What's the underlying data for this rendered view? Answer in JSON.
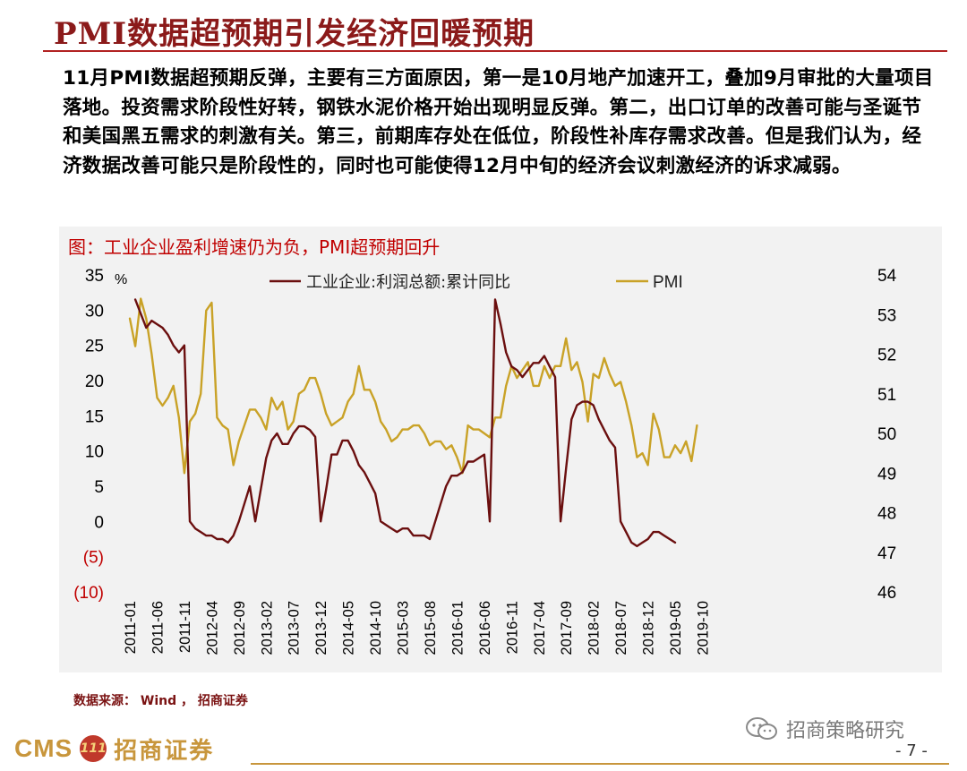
{
  "slide": {
    "title": "PMI数据超预期引发经济回暖预期",
    "paragraph": "11月PMI数据超预期反弹，主要有三方面原因，第一是10月地产加速开工，叠加9月审批的大量项目落地。投资需求阶段性好转，钢铁水泥价格开始出现明显反弹。第二，出口订单的改善可能与圣诞节和美国黑五需求的刺激有关。第三，前期库存处在低位，阶段性补库存需求改善。但是我们认为，经济数据改善可能只是阶段性的，同时也可能使得12月中旬的经济会议刺激经济的诉求减弱。",
    "chart_title": "图：工业企业盈利增速仍为负，PMI超预期回升",
    "source": "数据来源： Wind ， 招商证券",
    "logo_text": "CMS",
    "logo_mark": "111",
    "logo_cn": "招商证券",
    "watermark": "招商策略研究",
    "page_number": "- 7 -"
  },
  "colors": {
    "accent": "#8b1a1a",
    "profit_line": "#6b0f0f",
    "pmi_line": "#c9a227",
    "negative_label": "#c00000",
    "panel_bg": "#f2f2f2",
    "logo_gold": "#c8963c"
  },
  "chart_data": {
    "type": "line",
    "title": "图：工业企业盈利增速仍为负，PMI超预期回升",
    "left_unit": "%",
    "x_tick_labels": [
      "2011-01",
      "2011-06",
      "2011-11",
      "2012-04",
      "2012-09",
      "2013-02",
      "2013-07",
      "2013-12",
      "2014-05",
      "2014-10",
      "2015-03",
      "2015-08",
      "2016-01",
      "2016-06",
      "2016-11",
      "2017-04",
      "2017-09",
      "2018-02",
      "2018-07",
      "2018-12",
      "2019-05",
      "2019-10"
    ],
    "y_left": {
      "min": -10,
      "max": 35,
      "ticks": [
        "35",
        "30",
        "25",
        "20",
        "15",
        "10",
        "5",
        "0",
        "(5)",
        "(10)"
      ]
    },
    "y_right": {
      "min": 46,
      "max": 54,
      "ticks": [
        "54",
        "53",
        "52",
        "51",
        "50",
        "49",
        "48",
        "47",
        "46"
      ]
    },
    "legend": [
      "工业企业:利润总额:累计同比",
      "PMI"
    ],
    "legend_position": "top",
    "series": [
      {
        "name": "工业企业:利润总额:累计同比",
        "axis": "left",
        "x": [
          1,
          2,
          3,
          4,
          5,
          6,
          7,
          8,
          9,
          10,
          11,
          12,
          13,
          14,
          15,
          16,
          17,
          18,
          19,
          20,
          21,
          22,
          23,
          24,
          25,
          26,
          27,
          28,
          29,
          30,
          31,
          32,
          33,
          34,
          35,
          36,
          37,
          38,
          39,
          40,
          41,
          42,
          43,
          44,
          45,
          46,
          47,
          48,
          49,
          50,
          51,
          52,
          53,
          54,
          55,
          56,
          57,
          58,
          59,
          60,
          61,
          62,
          63,
          64,
          65,
          66,
          67,
          68,
          69,
          70,
          71,
          72,
          73,
          74,
          75,
          76,
          77,
          78,
          79,
          80,
          81,
          82,
          83,
          84,
          85,
          86,
          87,
          88,
          89,
          90,
          91,
          92,
          93,
          94,
          95,
          96,
          97,
          98,
          99,
          100,
          101,
          102,
          103,
          104,
          105,
          106,
          107,
          108,
          109,
          110,
          111,
          112,
          113,
          114,
          115,
          116,
          117,
          118,
          119,
          120,
          121,
          122,
          123,
          124,
          125,
          126,
          127,
          128,
          129,
          130,
          131,
          132,
          133,
          134
        ],
        "values": [
          null,
          31.5,
          29.5,
          27.5,
          28.5,
          28.0,
          27.5,
          26.5,
          25.0,
          24.0,
          25.0,
          0.0,
          -1.0,
          -1.5,
          -2.0,
          -2.0,
          -2.5,
          -2.5,
          -3.0,
          -2.0,
          0.0,
          2.5,
          5.0,
          0.0,
          4.5,
          9.0,
          11.5,
          12.5,
          11.0,
          11.0,
          12.5,
          13.5,
          13.5,
          13.0,
          12.0,
          0.0,
          4.5,
          9.5,
          9.5,
          11.5,
          11.5,
          10.0,
          8.0,
          7.0,
          5.5,
          4.0,
          0.0,
          -0.5,
          -1.0,
          -1.5,
          -1.0,
          -1.0,
          -2.0,
          -2.0,
          -2.0,
          -2.5,
          0.0,
          2.5,
          5.0,
          6.5,
          6.5,
          7.0,
          8.5,
          8.5,
          9.0,
          9.5,
          0.0,
          31.5,
          28.0,
          24.0,
          22.0,
          21.5,
          20.5,
          21.5,
          22.5,
          22.5,
          23.5,
          22.0,
          20.5,
          0.0,
          7.5,
          14.5,
          16.5,
          17.0,
          17.0,
          16.5,
          14.5,
          13.0,
          11.5,
          10.5,
          0.0,
          -1.5,
          -3.0,
          -3.5,
          -3.0,
          -2.5,
          -1.5,
          -1.5,
          -2.0,
          -2.5,
          -3.0,
          null,
          null,
          null,
          null,
          null,
          null,
          null,
          null,
          null,
          null,
          null,
          null,
          null,
          null,
          null,
          null,
          null,
          null,
          null,
          null,
          null,
          null,
          null,
          null,
          null,
          null,
          null,
          null,
          null,
          null,
          null,
          null,
          null
        ]
      },
      {
        "name": "PMI",
        "axis": "right",
        "x": [
          1,
          2,
          3,
          4,
          5,
          6,
          7,
          8,
          9,
          10,
          11,
          12,
          13,
          14,
          15,
          16,
          17,
          18,
          19,
          20,
          21,
          22,
          23,
          24,
          25,
          26,
          27,
          28,
          29,
          30,
          31,
          32,
          33,
          34,
          35,
          36,
          37,
          38,
          39,
          40,
          41,
          42,
          43,
          44,
          45,
          46,
          47,
          48,
          49,
          50,
          51,
          52,
          53,
          54,
          55,
          56,
          57,
          58,
          59,
          60,
          61,
          62,
          63,
          64,
          65,
          66,
          67,
          68,
          69,
          70,
          71,
          72,
          73,
          74,
          75,
          76,
          77,
          78,
          79,
          80,
          81,
          82,
          83,
          84,
          85,
          86,
          87,
          88,
          89,
          90,
          91,
          92,
          93,
          94,
          95,
          96,
          97,
          98,
          99,
          100,
          101,
          102,
          103,
          104,
          105,
          106,
          107,
          108
        ],
        "values": [
          52.9,
          52.2,
          53.4,
          52.9,
          52.0,
          50.9,
          50.7,
          50.9,
          51.2,
          50.4,
          49.0,
          50.3,
          50.5,
          51.0,
          53.1,
          53.3,
          50.4,
          50.2,
          50.1,
          49.2,
          49.8,
          50.2,
          50.6,
          50.6,
          50.4,
          50.1,
          50.9,
          50.6,
          50.8,
          50.1,
          50.3,
          51.0,
          51.1,
          51.4,
          51.4,
          51.0,
          50.5,
          50.2,
          50.3,
          50.4,
          50.8,
          51.0,
          51.7,
          51.1,
          51.1,
          50.8,
          50.3,
          50.1,
          49.8,
          49.9,
          50.1,
          50.1,
          50.2,
          50.2,
          50.0,
          49.7,
          49.8,
          49.8,
          49.6,
          49.7,
          49.4,
          49.0,
          50.2,
          50.1,
          50.1,
          50.0,
          49.9,
          50.4,
          50.4,
          51.2,
          51.7,
          51.4,
          51.6,
          51.8,
          51.2,
          51.2,
          51.7,
          51.4,
          51.7,
          51.7,
          52.4,
          51.6,
          51.8,
          51.3,
          50.3,
          51.5,
          51.4,
          51.9,
          51.5,
          51.2,
          51.3,
          50.8,
          50.2,
          49.4,
          49.5,
          49.2,
          50.5,
          50.1,
          49.4,
          49.4,
          49.7,
          49.5,
          49.8,
          49.3,
          50.2,
          null,
          null,
          null
        ]
      }
    ],
    "grid": false
  }
}
